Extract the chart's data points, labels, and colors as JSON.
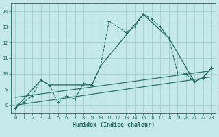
{
  "title": "",
  "xlabel": "Humidex (Indice chaleur)",
  "ylabel": "",
  "bg_color": "#c5e8e8",
  "grid_color": "#9ecece",
  "line_color": "#1a6b5a",
  "xlim": [
    -0.5,
    23.5
  ],
  "ylim": [
    7.5,
    14.5
  ],
  "xticks": [
    0,
    1,
    2,
    3,
    4,
    5,
    6,
    7,
    8,
    9,
    10,
    11,
    12,
    13,
    14,
    15,
    16,
    17,
    18,
    19,
    20,
    21,
    22,
    23
  ],
  "yticks": [
    8,
    9,
    10,
    11,
    12,
    13,
    14
  ],
  "series0_x": [
    0,
    1,
    2,
    3,
    4,
    5,
    6,
    7,
    8,
    9,
    10,
    11,
    12,
    13,
    14,
    15,
    16,
    17,
    18,
    19,
    20,
    21,
    22,
    23
  ],
  "series0_y": [
    7.8,
    8.2,
    8.6,
    9.6,
    9.3,
    8.2,
    8.6,
    8.4,
    9.4,
    9.3,
    10.5,
    13.35,
    13.0,
    12.65,
    13.0,
    13.8,
    13.5,
    13.0,
    12.3,
    10.1,
    10.0,
    9.5,
    9.75,
    10.4
  ],
  "series1_x": [
    0,
    3,
    4,
    9,
    10,
    15,
    18,
    21,
    22,
    23
  ],
  "series1_y": [
    7.8,
    9.6,
    9.3,
    9.3,
    10.5,
    13.8,
    12.3,
    9.5,
    9.75,
    10.4
  ],
  "trend1_x": [
    0,
    23
  ],
  "trend1_y": [
    8.5,
    10.2
  ],
  "trend2_x": [
    0,
    23
  ],
  "trend2_y": [
    8.0,
    9.8
  ]
}
